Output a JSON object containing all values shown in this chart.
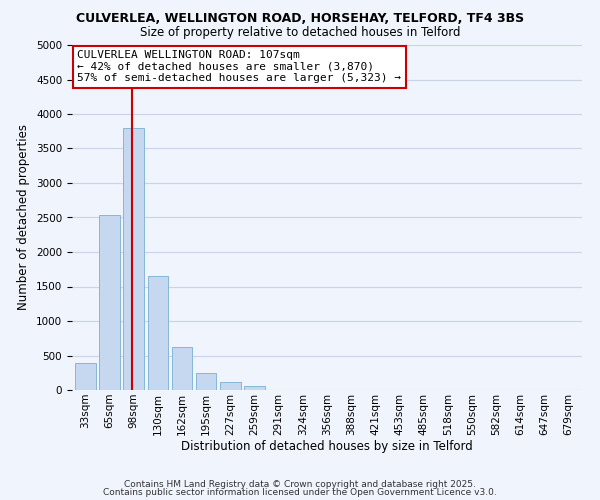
{
  "title": "CULVERLEA, WELLINGTON ROAD, HORSEHAY, TELFORD, TF4 3BS",
  "subtitle": "Size of property relative to detached houses in Telford",
  "xlabel": "Distribution of detached houses by size in Telford",
  "ylabel": "Number of detached properties",
  "bar_labels": [
    "33sqm",
    "65sqm",
    "98sqm",
    "130sqm",
    "162sqm",
    "195sqm",
    "227sqm",
    "259sqm",
    "291sqm",
    "324sqm",
    "356sqm",
    "388sqm",
    "421sqm",
    "453sqm",
    "485sqm",
    "518sqm",
    "550sqm",
    "582sqm",
    "614sqm",
    "647sqm",
    "679sqm"
  ],
  "bar_values": [
    390,
    2540,
    3800,
    1650,
    620,
    250,
    115,
    60,
    0,
    0,
    0,
    0,
    0,
    0,
    0,
    0,
    0,
    0,
    0,
    0,
    0
  ],
  "bar_color": "#c5d8f0",
  "bar_edge_color": "#7aafd4",
  "vline_color": "#cc0000",
  "vline_x_index": 2,
  "ylim": [
    0,
    5000
  ],
  "yticks": [
    0,
    500,
    1000,
    1500,
    2000,
    2500,
    3000,
    3500,
    4000,
    4500,
    5000
  ],
  "annotation_title": "CULVERLEA WELLINGTON ROAD: 107sqm",
  "annotation_line1": "← 42% of detached houses are smaller (3,870)",
  "annotation_line2": "57% of semi-detached houses are larger (5,323) →",
  "footer1": "Contains HM Land Registry data © Crown copyright and database right 2025.",
  "footer2": "Contains public sector information licensed under the Open Government Licence v3.0.",
  "bg_color": "#f0f4fc",
  "grid_color": "#c8d4e8",
  "title_fontsize": 9,
  "subtitle_fontsize": 8.5,
  "xlabel_fontsize": 8.5,
  "ylabel_fontsize": 8.5,
  "tick_fontsize": 7.5,
  "footer_fontsize": 6.5,
  "ann_fontsize": 8
}
